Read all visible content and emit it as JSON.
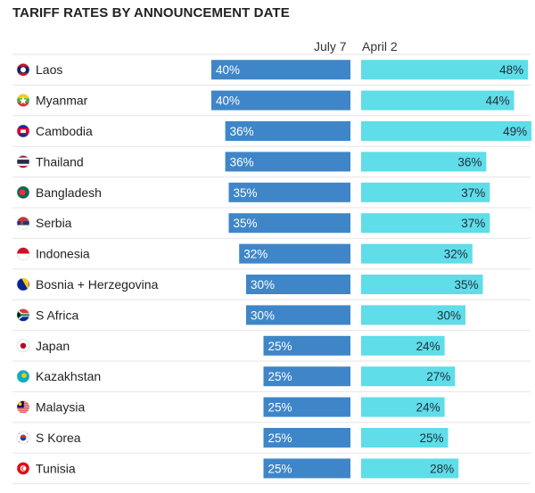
{
  "chart_data": {
    "type": "bar",
    "title": "TARIFF RATES BY ANNOUNCEMENT DATE",
    "series": [
      {
        "name": "July 7",
        "color": "#3f86c8",
        "values": [
          40,
          40,
          36,
          36,
          35,
          35,
          32,
          30,
          30,
          25,
          25,
          25,
          25,
          25
        ]
      },
      {
        "name": "April 2",
        "color": "#5fdde8",
        "values": [
          48,
          44,
          49,
          36,
          37,
          37,
          32,
          35,
          30,
          24,
          27,
          24,
          25,
          28
        ]
      }
    ],
    "categories": [
      "Laos",
      "Myanmar",
      "Cambodia",
      "Thailand",
      "Bangladesh",
      "Serbia",
      "Indonesia",
      "Bosnia + Herzegovina",
      "S Africa",
      "Japan",
      "Kazakhstan",
      "Malaysia",
      "S Korea",
      "Tunisia"
    ],
    "flag_icons": [
      "laos-flag-icon",
      "myanmar-flag-icon",
      "cambodia-flag-icon",
      "thailand-flag-icon",
      "bangladesh-flag-icon",
      "serbia-flag-icon",
      "indonesia-flag-icon",
      "bosnia-flag-icon",
      "south-africa-flag-icon",
      "japan-flag-icon",
      "kazakhstan-flag-icon",
      "malaysia-flag-icon",
      "south-korea-flag-icon",
      "tunisia-flag-icon"
    ],
    "value_suffix": "%",
    "legend": "top"
  }
}
